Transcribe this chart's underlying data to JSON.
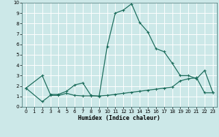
{
  "xlabel": "Humidex (Indice chaleur)",
  "bg_color": "#cce8e8",
  "grid_color": "#b0d8d8",
  "line_color": "#1a6b5a",
  "xlim": [
    -0.5,
    23.5
  ],
  "ylim": [
    0,
    10
  ],
  "xticks": [
    0,
    1,
    2,
    3,
    4,
    5,
    6,
    7,
    8,
    9,
    10,
    11,
    12,
    13,
    14,
    15,
    16,
    17,
    18,
    19,
    20,
    21,
    22,
    23
  ],
  "yticks": [
    0,
    1,
    2,
    3,
    4,
    5,
    6,
    7,
    8,
    9,
    10
  ],
  "curve1_x": [
    0,
    2,
    3,
    4,
    5,
    6,
    7,
    8,
    9,
    10,
    11,
    12,
    13,
    14,
    15,
    16,
    17,
    18,
    19,
    20,
    21,
    22,
    23
  ],
  "curve1_y": [
    1.8,
    3.0,
    1.2,
    1.2,
    1.5,
    2.1,
    2.3,
    1.1,
    1.0,
    5.8,
    9.0,
    9.3,
    9.9,
    8.1,
    7.2,
    5.6,
    5.3,
    4.2,
    3.0,
    3.0,
    2.7,
    3.5,
    1.4
  ],
  "curve2_x": [
    0,
    2,
    3,
    4,
    5,
    6,
    7,
    8,
    9,
    10,
    11,
    12,
    13,
    14,
    15,
    16,
    17,
    18,
    19,
    20,
    21,
    22,
    23
  ],
  "curve2_y": [
    1.8,
    0.5,
    1.1,
    1.1,
    1.3,
    1.1,
    1.05,
    1.05,
    1.05,
    1.1,
    1.2,
    1.3,
    1.4,
    1.5,
    1.6,
    1.7,
    1.8,
    1.9,
    2.5,
    2.7,
    2.8,
    1.35,
    1.35
  ]
}
